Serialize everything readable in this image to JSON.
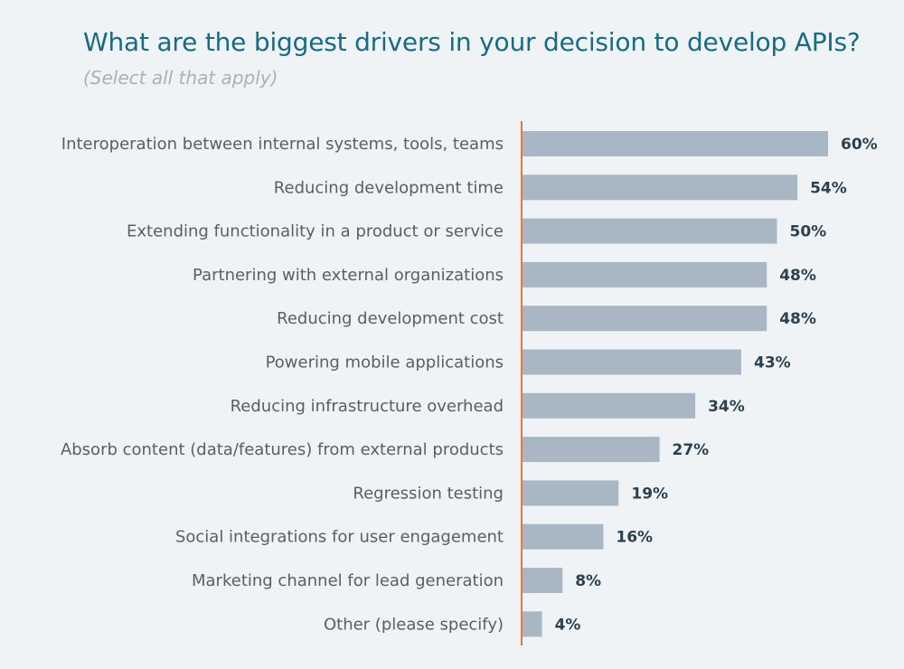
{
  "header": {
    "title": "What are the biggest drivers in your decision to develop APIs?",
    "subtitle": "(Select all that apply)"
  },
  "colors": {
    "title": "#176b82",
    "subtitle": "#a9b1b8",
    "bar": "#a9b6c3",
    "axis": "#e57a3c",
    "label": "#566066",
    "value": "#2c4150",
    "background": "#eff3f5"
  },
  "chart_data": {
    "type": "bar",
    "orientation": "horizontal",
    "title": "What are the biggest drivers in your decision to develop APIs?",
    "subtitle": "(Select all that apply)",
    "categories": [
      "Interoperation between internal systems, tools, teams",
      "Reducing development time",
      "Extending functionality in a product or service",
      "Partnering with external organizations",
      "Reducing development cost",
      "Powering mobile applications",
      "Reducing infrastructure overhead",
      "Absorb content (data/features) from external products",
      "Regression testing",
      "Social integrations for user engagement",
      "Marketing channel for lead generation",
      "Other (please specify)"
    ],
    "values": [
      60,
      54,
      50,
      48,
      48,
      43,
      34,
      27,
      19,
      16,
      8,
      4
    ],
    "value_labels": [
      "60%",
      "54%",
      "50%",
      "48%",
      "48%",
      "43%",
      "34%",
      "27%",
      "19%",
      "16%",
      "8%",
      "4%"
    ],
    "unit": "%",
    "xlim": [
      0,
      60
    ],
    "grid": false,
    "legend": "none"
  }
}
